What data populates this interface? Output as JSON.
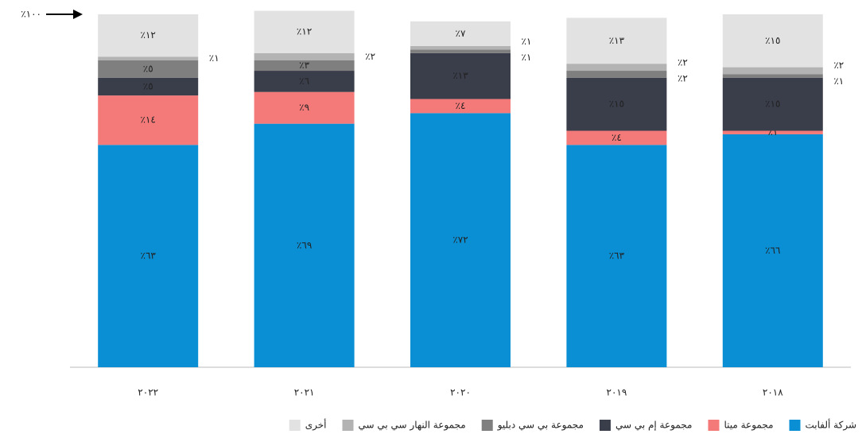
{
  "chart_data": {
    "type": "stacked_bar",
    "categories": [
      "٢٠٢٢",
      "٢٠٢١",
      "٢٠٢٠",
      "٢٠١٩",
      "٢٠١٨"
    ],
    "ylim": [
      0,
      100
    ],
    "yticks": [
      {
        "value": 100,
        "label": "٪١٠٠"
      }
    ],
    "series": [
      {
        "name": "شركة ألفابت",
        "color": "#0a8fd4",
        "values": [
          63,
          69,
          72,
          63,
          66
        ],
        "value_labels": [
          "٪٦٣",
          "٪٦٩",
          "٪٧٢",
          "٪٦٣",
          "٪٦٦"
        ]
      },
      {
        "name": "مجموعة ميتا",
        "color": "#f47a7a",
        "values": [
          14,
          9,
          4,
          4,
          1
        ],
        "value_labels": [
          "٪١٤",
          "٪٩",
          "٪٤",
          "٪٤",
          "٪١"
        ]
      },
      {
        "name": "مجموعة إم بي سي",
        "color": "#3a3d4a",
        "values": [
          5,
          6,
          13,
          15,
          15
        ],
        "value_labels": [
          "٪٥",
          "٪٦",
          "٪١٣",
          "٪١٥",
          "٪١٥"
        ]
      },
      {
        "name": "مجموعة بي سي دبليو",
        "color": "#7f7f7f",
        "values": [
          5,
          3,
          1,
          2,
          1
        ],
        "value_labels": [
          "٪٥",
          "٪٣",
          "٪١",
          "٪٢",
          "٪١"
        ]
      },
      {
        "name": "مجموعة النهار سي بي سي",
        "color": "#b3b3b3",
        "values": [
          1,
          2,
          1,
          2,
          2
        ],
        "value_labels": [
          "٪١",
          "٪٢",
          "٪١",
          "٪٢",
          "٪٢"
        ]
      },
      {
        "name": "أخرى",
        "color": "#e2e2e2",
        "values": [
          12,
          12,
          7,
          13,
          15
        ],
        "value_labels": [
          "٪١٢",
          "٪١٢",
          "٪٧",
          "٪١٣",
          "٪١٥"
        ]
      }
    ]
  }
}
